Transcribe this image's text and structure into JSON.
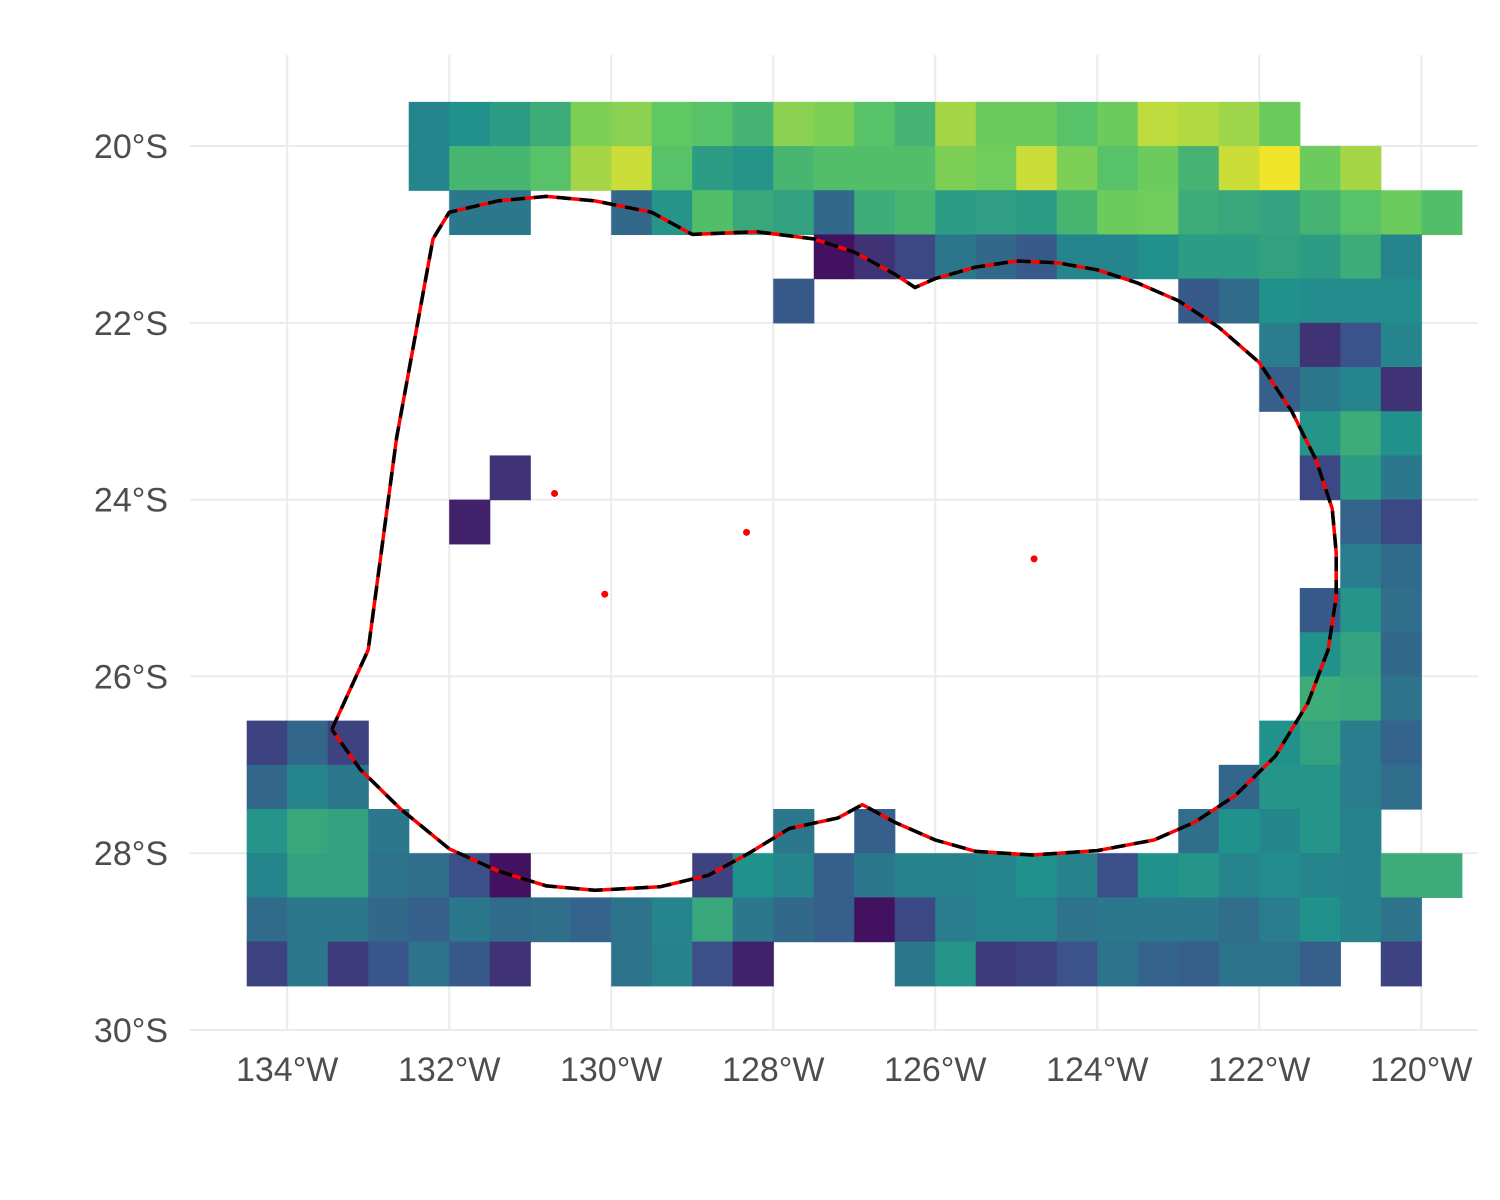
{
  "map": {
    "x_axis": {
      "range": [
        -135.2,
        -119.3
      ],
      "ticks": [
        -134,
        -132,
        -130,
        -128,
        -126,
        -124,
        -122,
        -120
      ],
      "labels": [
        "134°W",
        "132°W",
        "130°W",
        "128°W",
        "126°W",
        "124°W",
        "122°W",
        "120°W"
      ]
    },
    "y_axis": {
      "range": [
        -30,
        -18.97
      ],
      "ticks": [
        -20,
        -22,
        -24,
        -26,
        -28,
        -30
      ],
      "labels": [
        "20°S",
        "22°S",
        "24°S",
        "26°S",
        "28°S",
        "30°S"
      ]
    },
    "grid": true,
    "raster": {
      "cell_size_deg": 0.5,
      "value_range": [
        0,
        100
      ],
      "palette": [
        "#440154",
        "#3b528b",
        "#21918c",
        "#5ec962",
        "#fde725"
      ],
      "rows": [
        {
          "lat": -19.75,
          "lon_start": -132.25,
          "values": [
            45,
            50,
            55,
            62,
            80,
            82,
            75,
            72,
            65,
            82,
            80,
            72,
            65,
            86,
            77,
            77,
            72,
            77,
            90,
            88,
            85,
            77
          ]
        },
        {
          "lat": -20.25,
          "lon_start": -132.25,
          "values": [
            45,
            66,
            66,
            72,
            86,
            92,
            72,
            55,
            52,
            66,
            70,
            70,
            70,
            80,
            78,
            92,
            80,
            72,
            77,
            65,
            92,
            98,
            77,
            86
          ]
        },
        {
          "lat": -20.75,
          "lon_start": -131.75,
          "values": [
            40,
            40,
            null,
            null,
            34,
            52,
            70,
            60,
            57,
            34,
            62,
            66,
            55,
            56,
            55,
            66,
            77,
            78,
            62,
            60,
            58,
            65,
            72,
            77,
            70
          ]
        },
        {
          "lat": -21.25,
          "lon_start": -127.25,
          "values": [
            5,
            15,
            22,
            40,
            34,
            28,
            45,
            45,
            50,
            55,
            55,
            57,
            55,
            62,
            45
          ]
        },
        {
          "lat": -21.75,
          "lon_start": -127.75,
          "values": [
            28
          ]
        },
        {
          "lat": -21.75,
          "lon_start": -122.75,
          "values": [
            28,
            35,
            50,
            48,
            48,
            48
          ]
        },
        {
          "lat": -22.25,
          "lon_start": -121.75,
          "values": [
            42,
            15,
            25,
            45
          ]
        },
        {
          "lat": -22.75,
          "lon_start": -121.75,
          "values": [
            30,
            40,
            45,
            15
          ]
        },
        {
          "lat": -23.25,
          "lon_start": -121.25,
          "values": [
            52,
            62,
            50
          ]
        },
        {
          "lat": -23.75,
          "lon_start": -131.25,
          "values": [
            15
          ]
        },
        {
          "lat": -23.75,
          "lon_start": -121.25,
          "values": [
            22,
            55,
            40
          ]
        },
        {
          "lat": -24.25,
          "lon_start": -131.75,
          "values": [
            10
          ]
        },
        {
          "lat": -24.25,
          "lon_start": -120.75,
          "values": [
            32,
            22
          ]
        },
        {
          "lat": -24.75,
          "lon_start": -120.75,
          "values": [
            42,
            35
          ]
        },
        {
          "lat": -25.25,
          "lon_start": -121.25,
          "values": [
            28,
            52,
            36
          ]
        },
        {
          "lat": -25.75,
          "lon_start": -121.25,
          "values": [
            50,
            58,
            34
          ]
        },
        {
          "lat": -26.25,
          "lon_start": -121.25,
          "values": [
            62,
            60,
            38
          ]
        },
        {
          "lat": -26.75,
          "lon_start": -134.25,
          "values": [
            20,
            33,
            20
          ]
        },
        {
          "lat": -26.75,
          "lon_start": -121.75,
          "values": [
            50,
            57,
            42,
            32
          ]
        },
        {
          "lat": -27.25,
          "lon_start": -134.25,
          "values": [
            33,
            45,
            40
          ]
        },
        {
          "lat": -27.25,
          "lon_start": -122.25,
          "values": [
            33,
            52,
            52,
            42,
            36
          ]
        },
        {
          "lat": -27.75,
          "lon_start": -134.25,
          "values": [
            52,
            60,
            57,
            40
          ]
        },
        {
          "lat": -27.75,
          "lon_start": -127.75,
          "values": [
            40
          ]
        },
        {
          "lat": -27.75,
          "lon_start": -126.75,
          "values": [
            30
          ]
        },
        {
          "lat": -27.75,
          "lon_start": -122.75,
          "values": [
            36,
            50,
            46,
            52,
            44
          ]
        },
        {
          "lat": -28.25,
          "lon_start": -134.25,
          "values": [
            45,
            57,
            57,
            38,
            36,
            24,
            5,
            null,
            null,
            null,
            null,
            20,
            50,
            45,
            30,
            40,
            44,
            44,
            45,
            50,
            44,
            24,
            50,
            52,
            45,
            48,
            45,
            44,
            62,
            62
          ]
        },
        {
          "lat": -28.75,
          "lon_start": -134.25,
          "values": [
            35,
            40,
            40,
            34,
            30,
            40,
            35,
            36,
            32,
            38,
            45,
            60,
            40,
            34,
            30,
            5,
            22,
            42,
            45,
            45,
            38,
            40,
            40,
            40,
            36,
            42,
            50,
            44,
            38
          ]
        },
        {
          "lat": -29.25,
          "lon_start": -134.25,
          "values": [
            20,
            40,
            18,
            26,
            38,
            28,
            15,
            null,
            null,
            38,
            44,
            24,
            10,
            null,
            null,
            null,
            40,
            52,
            18,
            20,
            25,
            38,
            32,
            30,
            38,
            38,
            30,
            null,
            20
          ]
        }
      ]
    },
    "boundary": {
      "outline_color": "#ff0000",
      "dashed_outline_color": "#000000",
      "polygon": [
        [
          -133.45,
          -26.6
        ],
        [
          -133.0,
          -25.7
        ],
        [
          -132.65,
          -23.3
        ],
        [
          -132.2,
          -21.05
        ],
        [
          -132.0,
          -20.75
        ],
        [
          -131.4,
          -20.62
        ],
        [
          -130.8,
          -20.57
        ],
        [
          -130.2,
          -20.62
        ],
        [
          -129.5,
          -20.75
        ],
        [
          -129.0,
          -21.0
        ],
        [
          -128.5,
          -20.98
        ],
        [
          -128.2,
          -20.97
        ],
        [
          -127.5,
          -21.05
        ],
        [
          -127.0,
          -21.2
        ],
        [
          -126.5,
          -21.45
        ],
        [
          -126.25,
          -21.6
        ],
        [
          -126.0,
          -21.5
        ],
        [
          -125.5,
          -21.37
        ],
        [
          -125.0,
          -21.3
        ],
        [
          -124.5,
          -21.32
        ],
        [
          -124.0,
          -21.4
        ],
        [
          -123.5,
          -21.55
        ],
        [
          -123.0,
          -21.75
        ],
        [
          -122.5,
          -22.05
        ],
        [
          -122.0,
          -22.45
        ],
        [
          -121.6,
          -23.0
        ],
        [
          -121.3,
          -23.55
        ],
        [
          -121.1,
          -24.1
        ],
        [
          -121.05,
          -24.6
        ],
        [
          -121.05,
          -25.1
        ],
        [
          -121.15,
          -25.7
        ],
        [
          -121.4,
          -26.3
        ],
        [
          -121.8,
          -26.9
        ],
        [
          -122.3,
          -27.35
        ],
        [
          -122.8,
          -27.65
        ],
        [
          -123.3,
          -27.85
        ],
        [
          -124.0,
          -27.97
        ],
        [
          -124.8,
          -28.02
        ],
        [
          -125.5,
          -27.98
        ],
        [
          -126.0,
          -27.85
        ],
        [
          -126.5,
          -27.65
        ],
        [
          -126.9,
          -27.45
        ],
        [
          -127.2,
          -27.6
        ],
        [
          -127.8,
          -27.72
        ],
        [
          -128.3,
          -28.0
        ],
        [
          -128.8,
          -28.25
        ],
        [
          -129.4,
          -28.38
        ],
        [
          -130.2,
          -28.42
        ],
        [
          -130.8,
          -28.37
        ],
        [
          -131.4,
          -28.2
        ],
        [
          -132.0,
          -27.95
        ],
        [
          -132.6,
          -27.5
        ],
        [
          -133.1,
          -27.05
        ],
        [
          -133.45,
          -26.6
        ]
      ],
      "islands": [
        [
          -130.7,
          -23.93
        ],
        [
          -130.08,
          -25.07
        ],
        [
          -128.33,
          -24.37
        ],
        [
          -124.78,
          -24.67
        ]
      ]
    }
  }
}
